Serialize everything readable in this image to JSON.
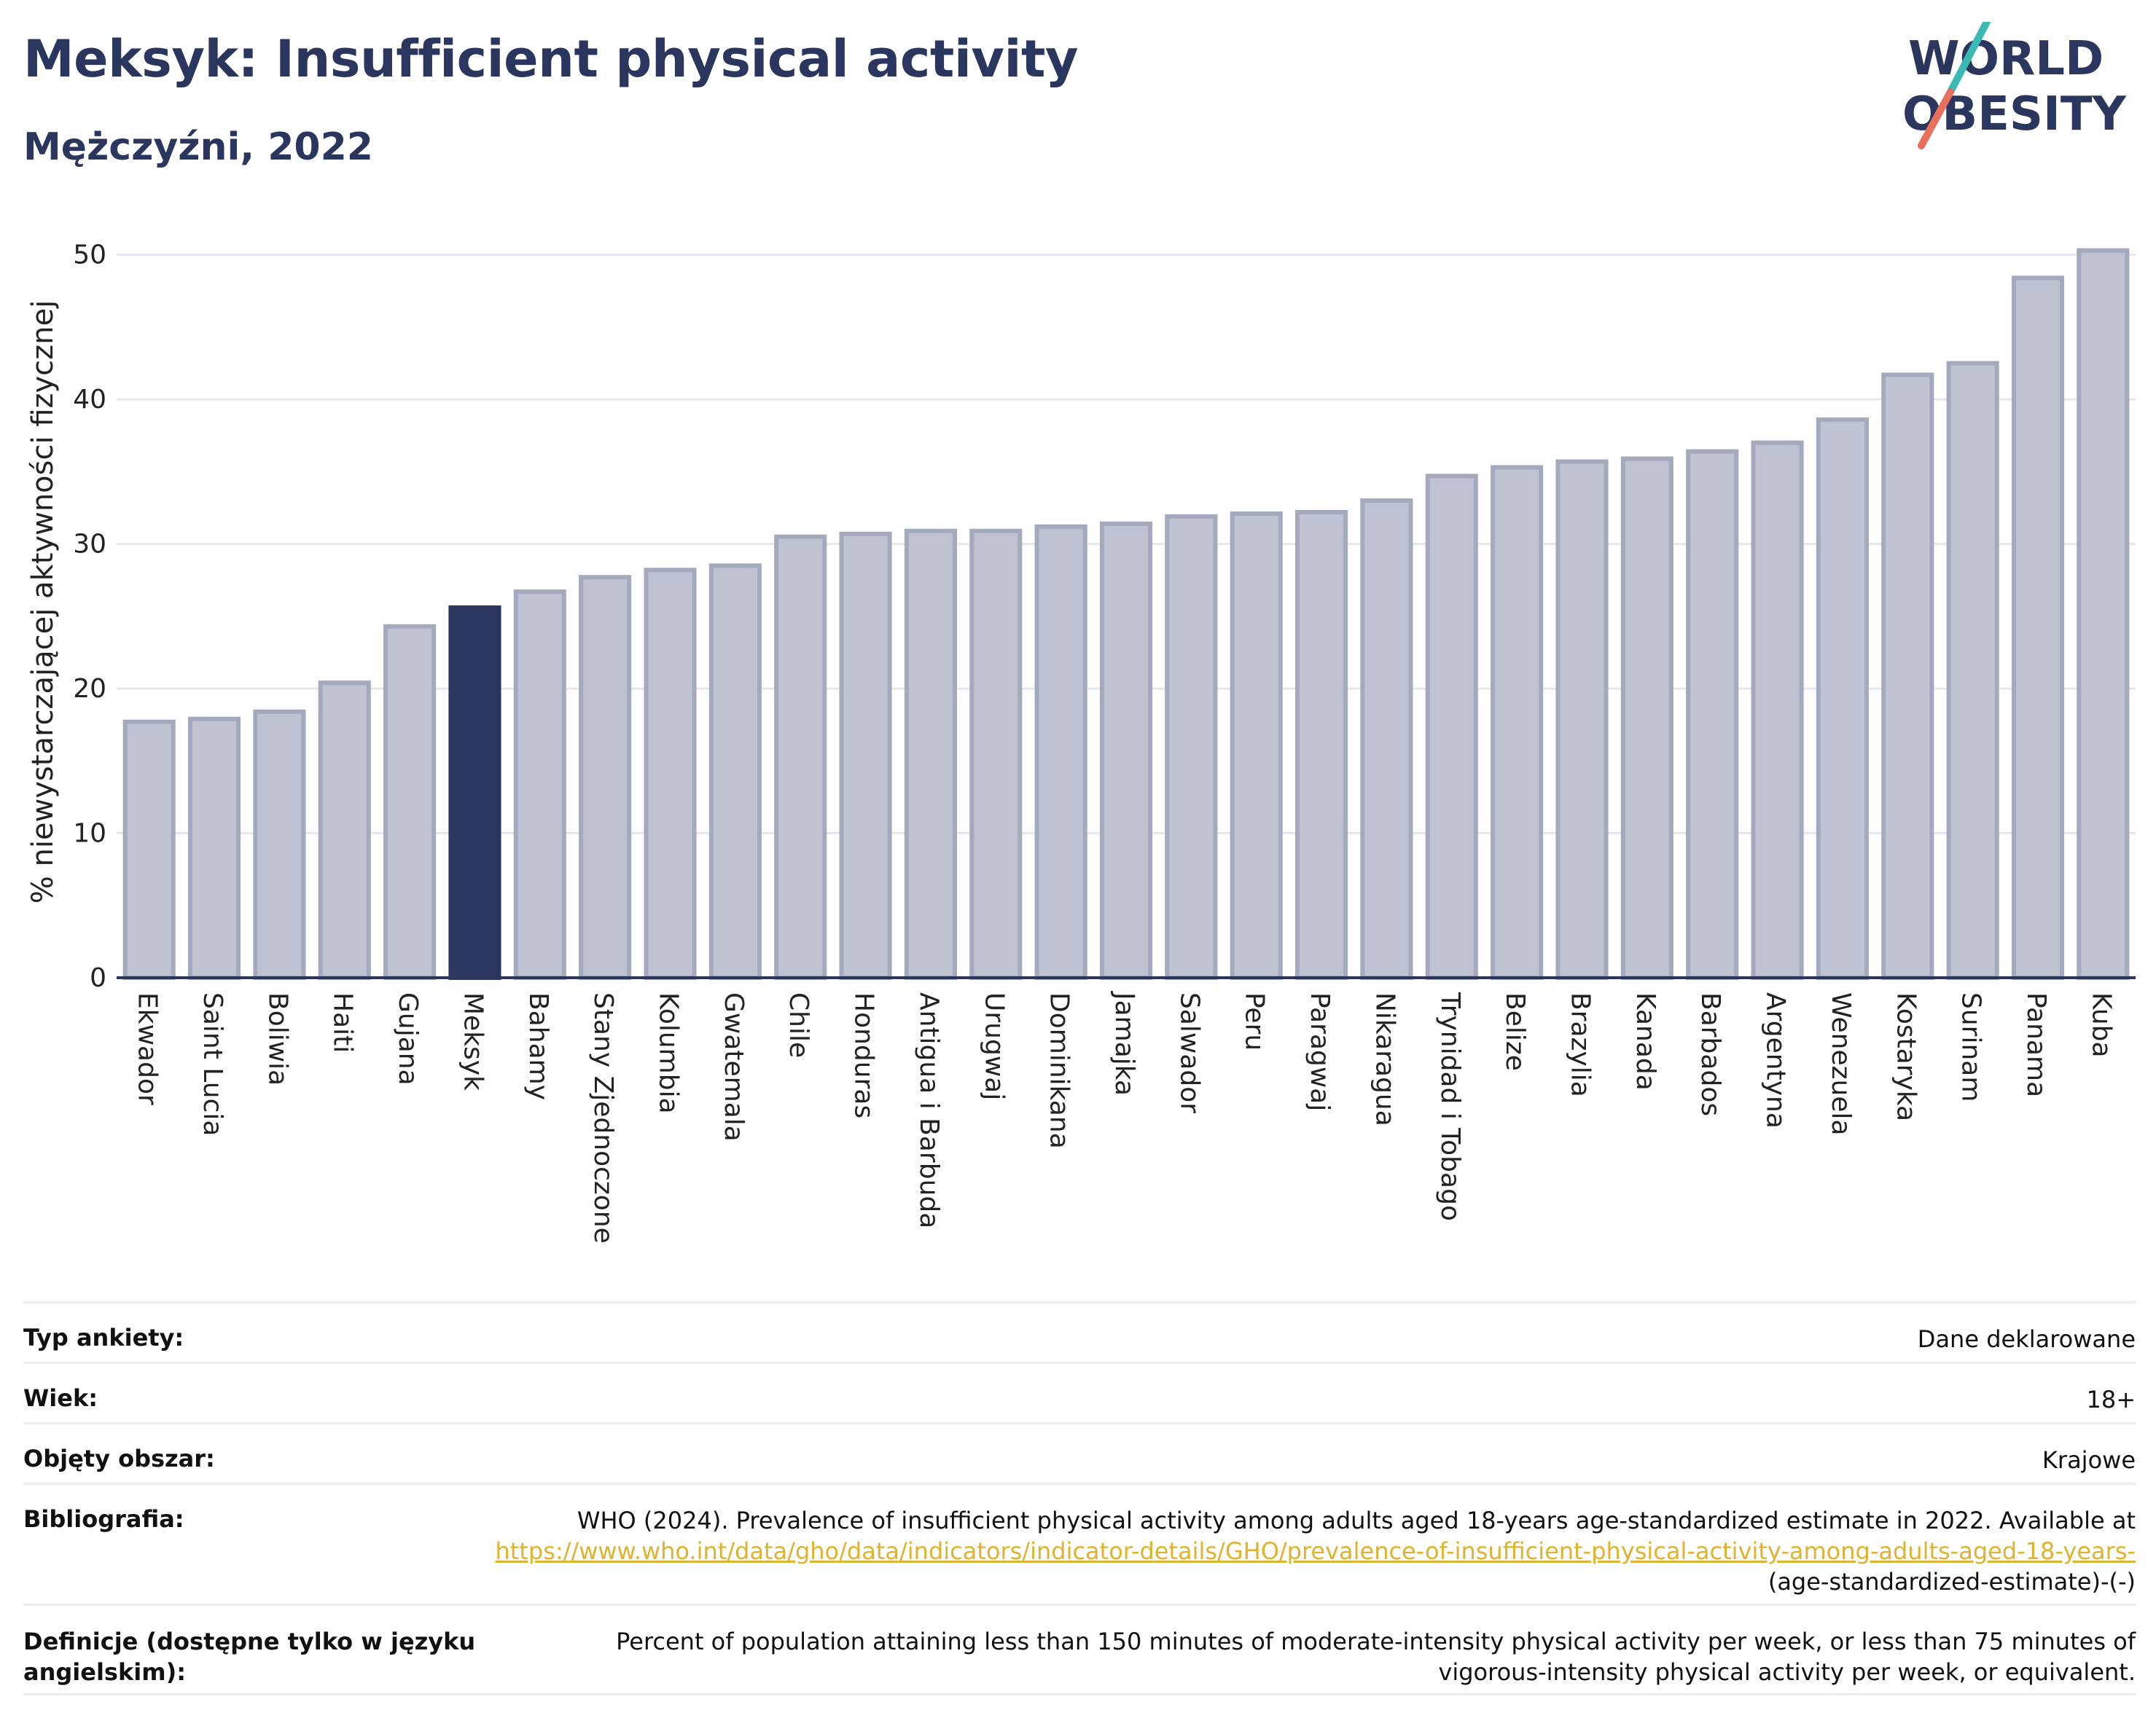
{
  "header": {
    "title": "Meksyk: Insufficient physical activity",
    "subtitle": "Mężczyźni, 2022"
  },
  "logo": {
    "line1": "WORLD",
    "line2": "OBESITY"
  },
  "colors": {
    "highlight": "#2b365e",
    "bar": "#bfc2d0",
    "bar_stroke": "#a4a9bd",
    "link": "#e0b22e",
    "logo_teal": "#3bb9b4",
    "logo_coral": "#e8705c"
  },
  "chart_data": {
    "type": "bar",
    "ylabel": "% niewystarczającej aktywności fizycznej",
    "ylim": [
      0,
      52
    ],
    "yticks": [
      0,
      10,
      20,
      30,
      40,
      50
    ],
    "grid": true,
    "highlight": "Meksyk",
    "categories": [
      "Ekwador",
      "Saint Lucia",
      "Boliwia",
      "Haiti",
      "Gujana",
      "Meksyk",
      "Bahamy",
      "Stany Zjednoczone",
      "Kolumbia",
      "Gwatemala",
      "Chile",
      "Honduras",
      "Antigua i Barbuda",
      "Urugwaj",
      "Dominikana",
      "Jamajka",
      "Salwador",
      "Peru",
      "Paragwaj",
      "Nikaragua",
      "Trynidad i Tobago",
      "Belize",
      "Brazylia",
      "Kanada",
      "Barbados",
      "Argentyna",
      "Wenezuela",
      "Kostaryka",
      "Surinam",
      "Panama",
      "Kuba"
    ],
    "values": [
      17.7,
      17.9,
      18.4,
      20.4,
      24.3,
      25.6,
      26.7,
      27.7,
      28.2,
      28.5,
      30.5,
      30.7,
      30.9,
      30.9,
      31.2,
      31.4,
      31.9,
      32.1,
      32.2,
      33.0,
      34.7,
      35.3,
      35.7,
      35.9,
      36.4,
      37.0,
      38.6,
      41.7,
      42.5,
      48.4,
      50.3
    ]
  },
  "meta": {
    "survey_type_label": "Typ ankiety:",
    "survey_type_value": "Dane deklarowane",
    "age_label": "Wiek:",
    "age_value": "18+",
    "area_label": "Objęty obszar:",
    "area_value": "Krajowe",
    "biblio_label": "Bibliografia:",
    "biblio_text": "WHO (2024). Prevalence of insufficient physical activity among adults aged 18-years age-standardized estimate in 2022. Available at",
    "biblio_link": "https://www.who.int/data/gho/data/indicators/indicator-details/GHO/prevalence-of-insufficient-physical-activity-among-adults-aged-18-years-",
    "biblio_tail": "(age-standardized-estimate)-(-)",
    "definition_label": "Definicje (dostępne tylko w języku angielskim):",
    "definition_value": "Percent of population attaining less than 150 minutes of moderate-intensity physical activity per week, or less than 75 minutes of vigorous-intensity physical activity per week, or equivalent."
  }
}
